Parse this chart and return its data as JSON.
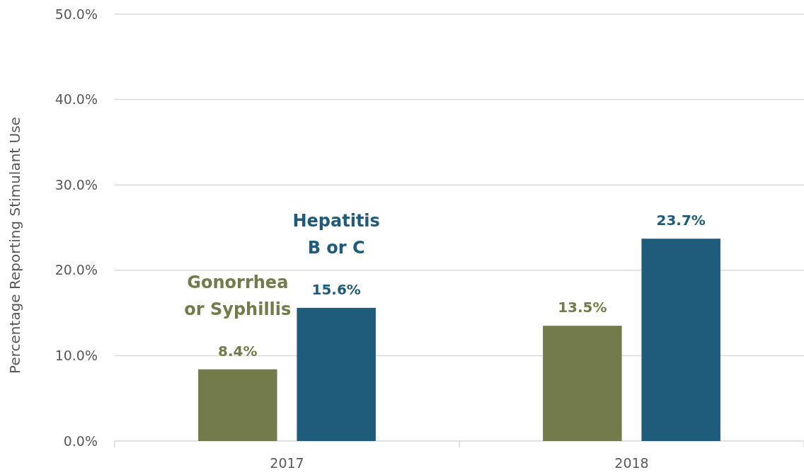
{
  "chart_data": {
    "type": "bar",
    "ylabel": "Percentage Reporting Stimulant Use",
    "categories": [
      "2017",
      "2018"
    ],
    "series": [
      {
        "name": "Gonorrhea or Syphillis",
        "color": "#747b4b",
        "values": [
          8.4,
          13.5
        ],
        "value_labels": [
          "8.4%",
          "13.5%"
        ]
      },
      {
        "name": "Hepatitis B or C",
        "color": "#1f5b7b",
        "values": [
          15.6,
          23.7
        ],
        "value_labels": [
          "15.6%",
          "23.7%"
        ]
      }
    ],
    "ylim": [
      0,
      50
    ],
    "yticks": [
      {
        "value": 0,
        "label": "0.0%"
      },
      {
        "value": 10,
        "label": "10.0%"
      },
      {
        "value": 20,
        "label": "20.0%"
      },
      {
        "value": 30,
        "label": "30.0%"
      },
      {
        "value": 40,
        "label": "40.0%"
      },
      {
        "value": 50,
        "label": "50.0%"
      }
    ],
    "grid": "y"
  }
}
